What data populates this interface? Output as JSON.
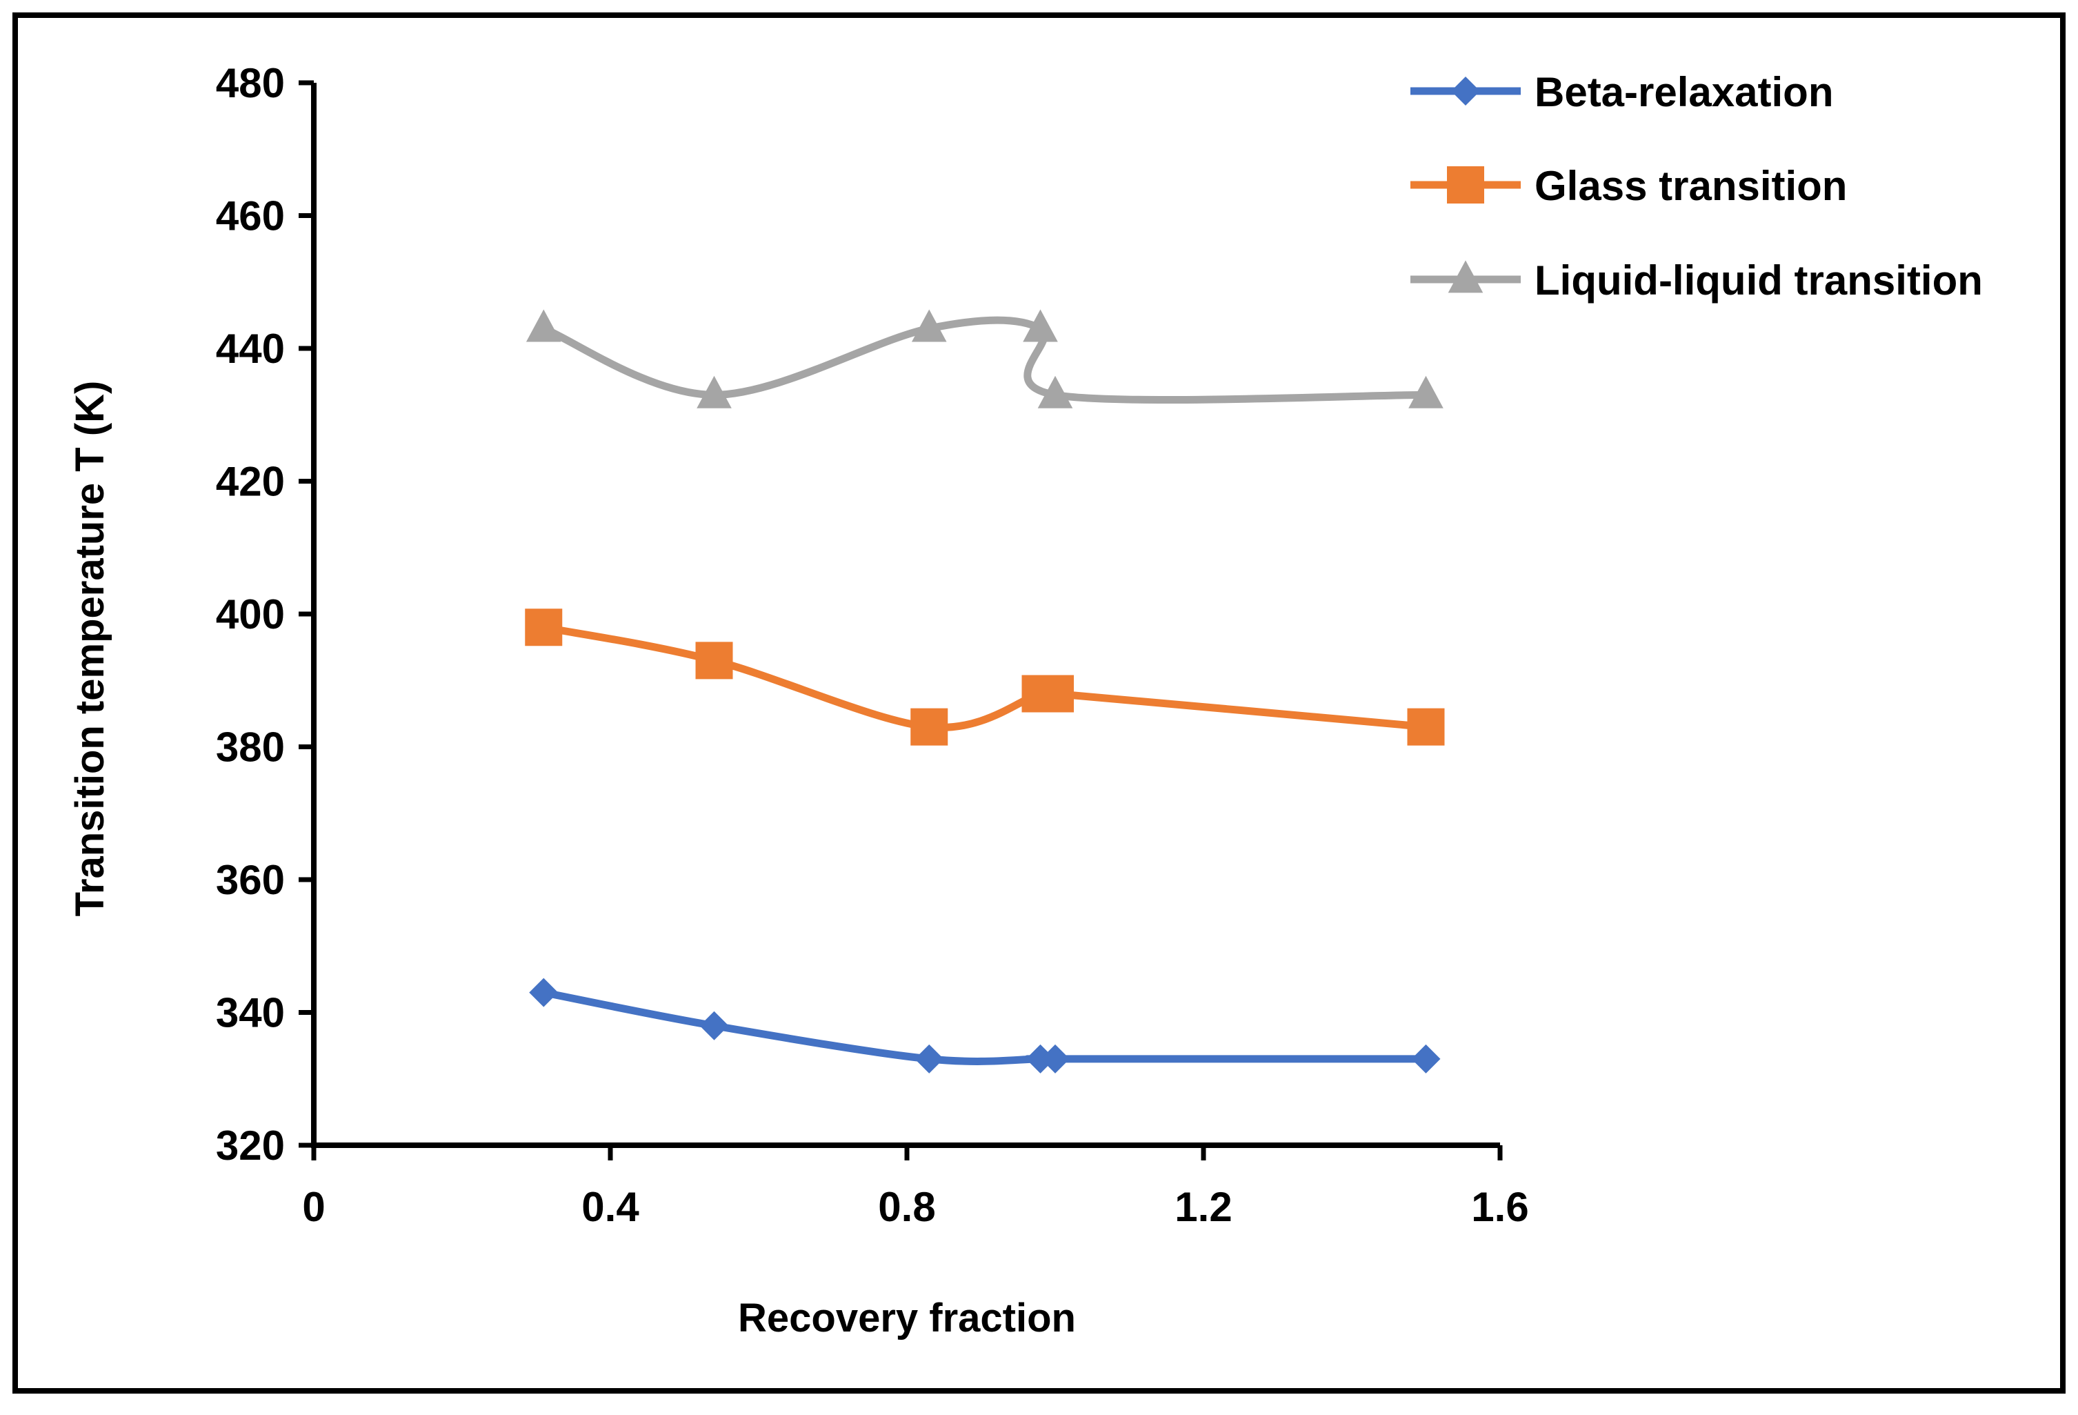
{
  "chart_data": {
    "type": "line",
    "title": "",
    "xlabel": "Recovery fraction",
    "ylabel": "Transition temperature T (K)",
    "xlim": [
      0,
      1.6
    ],
    "ylim": [
      320,
      480
    ],
    "x_ticks": [
      0,
      0.4,
      0.8,
      1.2,
      1.6
    ],
    "x_tick_labels": [
      "0",
      "0.4",
      "0.8",
      "1.2",
      "1.6"
    ],
    "y_ticks": [
      320,
      340,
      360,
      380,
      400,
      420,
      440,
      460,
      480
    ],
    "y_tick_labels": [
      "320",
      "340",
      "360",
      "380",
      "400",
      "420",
      "440",
      "460",
      "480"
    ],
    "grid": false,
    "legend_position": "top-right",
    "smoothed_lines": true,
    "series": [
      {
        "name": "Beta-relaxation",
        "color": "#4472C4",
        "marker": "diamond",
        "x": [
          0.31,
          0.54,
          0.83,
          0.98,
          1.0,
          1.5
        ],
        "y": [
          343,
          338,
          333,
          333,
          333,
          333
        ]
      },
      {
        "name": "Glass transition",
        "color": "#ED7D31",
        "marker": "square",
        "x": [
          0.31,
          0.54,
          0.83,
          0.98,
          1.0,
          1.5
        ],
        "y": [
          398,
          393,
          383,
          388,
          388,
          383
        ]
      },
      {
        "name": "Liquid-liquid transition",
        "color": "#A5A5A5",
        "marker": "triangle",
        "x": [
          0.31,
          0.54,
          0.83,
          0.98,
          1.0,
          1.5
        ],
        "y": [
          443,
          433,
          443,
          443,
          433,
          433
        ]
      }
    ]
  }
}
